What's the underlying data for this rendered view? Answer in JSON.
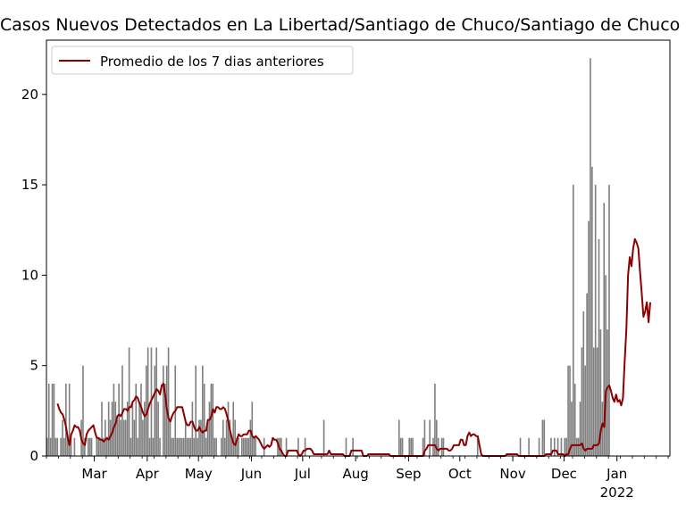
{
  "chart_data": {
    "type": "bar",
    "title": "Casos Nuevos Detectados en La Libertad/Santiago de Chuco/Santiago de Chuco",
    "xlabel": "",
    "ylabel": "",
    "ylim": [
      0,
      23
    ],
    "yticks": [
      0,
      5,
      10,
      15,
      20
    ],
    "x_start": "2021-02-01",
    "x_end": "2022-01-31",
    "x_ticks": [
      {
        "date": "2021-03-01",
        "label": "Mar"
      },
      {
        "date": "2021-04-01",
        "label": "Apr"
      },
      {
        "date": "2021-05-01",
        "label": "May"
      },
      {
        "date": "2021-06-01",
        "label": "Jun"
      },
      {
        "date": "2021-07-01",
        "label": "Jul"
      },
      {
        "date": "2021-08-01",
        "label": "Aug"
      },
      {
        "date": "2021-09-01",
        "label": "Sep"
      },
      {
        "date": "2021-10-01",
        "label": "Oct"
      },
      {
        "date": "2021-11-01",
        "label": "Nov"
      },
      {
        "date": "2021-12-01",
        "label": "Dec"
      },
      {
        "date": "2022-01-01",
        "label": "Jan",
        "sublabel": "2022"
      }
    ],
    "bar_color": "#808080",
    "line_color": "#8b0000",
    "legend_position": "upper-left",
    "series": [
      {
        "kind": "bar",
        "start_date": "2021-02-01",
        "values": [
          1,
          4,
          1,
          4,
          4,
          1,
          1,
          0,
          1,
          2,
          1,
          4,
          1,
          4,
          1,
          0,
          1,
          0,
          0,
          0,
          2,
          5,
          1,
          0,
          1,
          1,
          1,
          0,
          0,
          1,
          1,
          1,
          3,
          1,
          2,
          1,
          3,
          2,
          3,
          4,
          3,
          2,
          4,
          2,
          5,
          2,
          2,
          3,
          6,
          1,
          3,
          2,
          4,
          1,
          3,
          4,
          2,
          3,
          5,
          6,
          1,
          6,
          1,
          5,
          6,
          3,
          1,
          0,
          5,
          4,
          5,
          6,
          2,
          1,
          1,
          5,
          1,
          1,
          1,
          1,
          1,
          2,
          1,
          1,
          1,
          3,
          1,
          5,
          1,
          2,
          2,
          5,
          4,
          1,
          2,
          3,
          4,
          4,
          1,
          1,
          0,
          0,
          1,
          2,
          1,
          2,
          3,
          2,
          1,
          3,
          2,
          1,
          1,
          0,
          1,
          1,
          1,
          1,
          1,
          2,
          3,
          1,
          1,
          0,
          0,
          0,
          0,
          1,
          0,
          0,
          0,
          0,
          0,
          0,
          0,
          1,
          1,
          1,
          0,
          0,
          1,
          0,
          0,
          0,
          0,
          0,
          0,
          1,
          0,
          0,
          0,
          1,
          0,
          0,
          0,
          0,
          0,
          0,
          0,
          0,
          0,
          0,
          2,
          0,
          0,
          0,
          0,
          0,
          0,
          0,
          0,
          0,
          0,
          0,
          0,
          1,
          0,
          0,
          0,
          1,
          0,
          0,
          0,
          0,
          0,
          0,
          0,
          0,
          0,
          0,
          0,
          0,
          0,
          0,
          0,
          0,
          0,
          0,
          0,
          0,
          0,
          0,
          0,
          0,
          0,
          0,
          2,
          1,
          1,
          0,
          0,
          0,
          1,
          1,
          1,
          0,
          0,
          0,
          0,
          0,
          1,
          2,
          0,
          0,
          2,
          0,
          1,
          4,
          2,
          1,
          0,
          1,
          1,
          0,
          0,
          0,
          0,
          0,
          0,
          0,
          0,
          0,
          0,
          0,
          0,
          0,
          0,
          0,
          0,
          0,
          0,
          0,
          1,
          0,
          0,
          0,
          0,
          0,
          0,
          0,
          0,
          0,
          0,
          0,
          0,
          0,
          0,
          0,
          0,
          0,
          0,
          0,
          0,
          0,
          0,
          0,
          0,
          1,
          0,
          0,
          0,
          0,
          1,
          0,
          0,
          0,
          0,
          0,
          1,
          0,
          2,
          2,
          0,
          0,
          0,
          1,
          0,
          1,
          0,
          1,
          0,
          1,
          0,
          1,
          1,
          5,
          5,
          3,
          15,
          4,
          1,
          1,
          3,
          6,
          8,
          5,
          9,
          13,
          22,
          16,
          6,
          15,
          6,
          12,
          7,
          3,
          14,
          10,
          7,
          15
        ]
      },
      {
        "kind": "line",
        "name": "Promedio de los 7 dias anteriores",
        "start_date": "2021-02-07",
        "values": [
          2.9,
          2.6,
          2.4,
          2.3,
          2.0,
          1.6,
          1.0,
          0.6,
          1.2,
          1.4,
          1.7,
          1.6,
          1.6,
          1.4,
          0.9,
          0.7,
          0.6,
          1.2,
          1.4,
          1.5,
          1.6,
          1.7,
          1.3,
          1.0,
          1.0,
          0.9,
          0.9,
          0.8,
          0.9,
          1.0,
          0.9,
          1.1,
          1.3,
          1.6,
          1.8,
          2.2,
          2.3,
          2.2,
          2.4,
          2.6,
          2.6,
          2.5,
          2.7,
          2.7,
          3.0,
          3.1,
          3.3,
          3.2,
          2.9,
          2.7,
          2.4,
          2.2,
          2.3,
          2.6,
          2.9,
          3.1,
          3.3,
          3.5,
          3.7,
          3.6,
          3.4,
          3.9,
          4.0,
          3.4,
          2.6,
          2.1,
          1.9,
          2.2,
          2.4,
          2.5,
          2.7,
          2.7,
          2.7,
          2.7,
          2.3,
          1.9,
          1.7,
          1.7,
          1.9,
          1.9,
          1.6,
          1.4,
          1.4,
          1.6,
          1.4,
          1.3,
          1.4,
          1.4,
          2.0,
          2.0,
          2.2,
          2.6,
          2.4,
          2.7,
          2.7,
          2.6,
          2.6,
          2.7,
          2.6,
          2.3,
          1.9,
          1.4,
          1.0,
          0.7,
          0.6,
          0.9,
          1.2,
          1.1,
          1.1,
          1.2,
          1.2,
          1.2,
          1.4,
          1.4,
          1.1,
          1.0,
          1.1,
          1.0,
          0.9,
          0.7,
          0.5,
          0.4,
          0.5,
          0.6,
          0.5,
          0.6,
          1.0,
          0.9,
          0.9,
          0.7,
          0.4,
          0.3,
          0.1,
          0.0,
          0.0,
          0.3,
          0.3,
          0.3,
          0.3,
          0.3,
          0.3,
          0.1,
          0.0,
          0.1,
          0.3,
          0.3,
          0.4,
          0.4,
          0.4,
          0.3,
          0.1,
          0.1,
          0.1,
          0.1,
          0.1,
          0.1,
          0.1,
          0.1,
          0.1,
          0.3,
          0.1,
          0.1,
          0.1,
          0.1,
          0.1,
          0.1,
          0.1,
          0.1,
          0.0,
          0.0,
          0.0,
          0.0,
          0.3,
          0.3,
          0.3,
          0.3,
          0.3,
          0.3,
          0.3,
          0.0,
          0.0,
          0.0,
          0.1,
          0.1,
          0.1,
          0.1,
          0.1,
          0.1,
          0.1,
          0.1,
          0.1,
          0.1,
          0.1,
          0.1,
          0.1,
          0.0,
          0.0,
          0.0,
          0.0,
          0.0,
          0.0,
          0.0,
          0.0,
          0.0,
          0.0,
          0.0,
          0.0,
          0.0,
          0.0,
          0.0,
          0.0,
          0.0,
          0.0,
          0.0,
          0.0,
          0.3,
          0.4,
          0.6,
          0.6,
          0.6,
          0.6,
          0.6,
          0.4,
          0.3,
          0.4,
          0.4,
          0.4,
          0.4,
          0.4,
          0.3,
          0.3,
          0.4,
          0.6,
          0.6,
          0.6,
          0.6,
          0.9,
          0.9,
          0.6,
          0.6,
          1.1,
          1.3,
          1.1,
          1.2,
          1.2,
          1.1,
          1.1,
          0.6,
          0.1,
          0.0,
          0.0,
          0.0,
          0.0,
          0.0,
          0.0,
          0.0,
          0.0,
          0.0,
          0.0,
          0.0,
          0.0,
          0.0,
          0.0,
          0.1,
          0.1,
          0.1,
          0.1,
          0.1,
          0.1,
          0.1,
          0.0,
          0.0,
          0.0,
          0.0,
          0.0,
          0.0,
          0.0,
          0.0,
          0.0,
          0.0,
          0.0,
          0.0,
          0.0,
          0.0,
          0.0,
          0.0,
          0.1,
          0.1,
          0.1,
          0.1,
          0.3,
          0.3,
          0.3,
          0.1,
          0.1,
          0.1,
          0.1,
          0.0,
          0.1,
          0.1,
          0.4,
          0.6,
          0.6,
          0.6,
          0.6,
          0.6,
          0.6,
          0.7,
          0.4,
          0.3,
          0.4,
          0.4,
          0.4,
          0.4,
          0.6,
          0.6,
          0.6,
          0.7,
          1.4,
          1.8,
          1.6,
          3.6,
          3.8,
          3.9,
          3.6,
          3.2,
          3.0,
          3.4,
          3.0,
          3.1,
          2.8,
          3.2,
          5.2,
          7.0,
          10.0,
          11.0,
          10.5,
          11.5,
          12.0,
          11.8,
          11.5,
          10.2,
          9.0,
          7.7,
          8.0,
          8.5,
          7.4,
          8.5
        ]
      }
    ]
  }
}
